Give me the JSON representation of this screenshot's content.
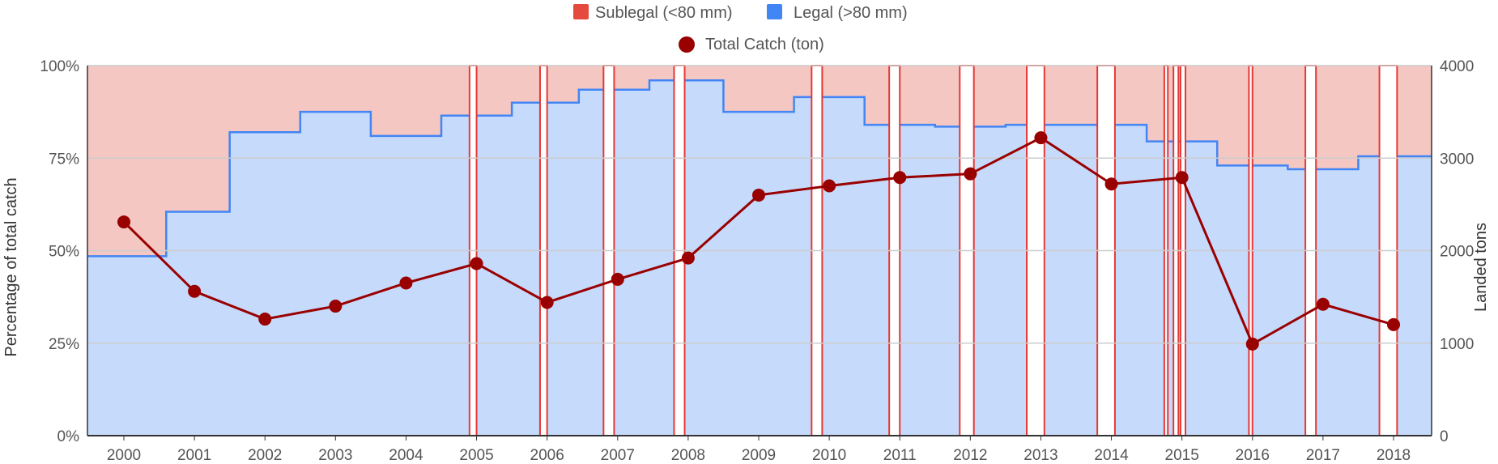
{
  "chart_data": {
    "type": "area",
    "legend": [
      {
        "name": "Sublegal (<80 mm)",
        "color": "#e54a3f",
        "marker": "square"
      },
      {
        "name": "Legal (>80 mm)",
        "color": "#4285f4",
        "marker": "square"
      },
      {
        "name": "Total Catch (ton)",
        "color": "#990000",
        "marker": "circle"
      }
    ],
    "legend_position": "top",
    "ylabel_left": "Percentage of total catch",
    "ylabel_right": "Landed tons",
    "y_left_ticks": [
      "0%",
      "25%",
      "50%",
      "75%",
      "100%"
    ],
    "y_right_ticks": [
      "0",
      "1000",
      "2000",
      "3000",
      "4000"
    ],
    "ylim_left": [
      0,
      100
    ],
    "ylim_right": [
      0,
      4000
    ],
    "x_ticks": [
      "2000",
      "2001",
      "2002",
      "2003",
      "2004",
      "2005",
      "2006",
      "2007",
      "2008",
      "2009",
      "2010",
      "2011",
      "2012",
      "2013",
      "2014",
      "2015",
      "2016",
      "2017",
      "2018"
    ],
    "grid": true,
    "colors": {
      "sublegal_fill": "#f4c7c3",
      "legal_fill": "#c6dafc",
      "legal_line": "#4285f4",
      "gap_outline": "#e53935",
      "catch_line": "#990000",
      "grid": "#cccccc",
      "axis": "#333333"
    },
    "legal_percentage_steps": [
      {
        "x_start": 2000,
        "x_end": 2000.6,
        "value": 48.5
      },
      {
        "x_start": 2000.6,
        "x_end": 2001.5,
        "value": 60.5
      },
      {
        "x_start": 2001.5,
        "x_end": 2002.5,
        "value": 82
      },
      {
        "x_start": 2002.5,
        "x_end": 2003.5,
        "value": 87.5
      },
      {
        "x_start": 2003.5,
        "x_end": 2004.5,
        "value": 81
      },
      {
        "x_start": 2004.5,
        "x_end": 2004.9,
        "value": 86.5
      },
      {
        "x_start": 2004.9,
        "x_end": 2005.5,
        "value": 86.5
      },
      {
        "x_start": 2005.5,
        "x_end": 2006.45,
        "value": 90
      },
      {
        "x_start": 2006.45,
        "x_end": 2007.45,
        "value": 93.5
      },
      {
        "x_start": 2007.45,
        "x_end": 2008.5,
        "value": 96
      },
      {
        "x_start": 2008.5,
        "x_end": 2009.5,
        "value": 87.5
      },
      {
        "x_start": 2009.5,
        "x_end": 2010.5,
        "value": 91.5
      },
      {
        "x_start": 2010.5,
        "x_end": 2010.85,
        "value": 84
      },
      {
        "x_start": 2010.85,
        "x_end": 2011.5,
        "value": 84
      },
      {
        "x_start": 2011.5,
        "x_end": 2012.5,
        "value": 83.5
      },
      {
        "x_start": 2012.5,
        "x_end": 2013.5,
        "value": 84
      },
      {
        "x_start": 2013.5,
        "x_end": 2014.5,
        "value": 84
      },
      {
        "x_start": 2014.5,
        "x_end": 2014.95,
        "value": 79.5
      },
      {
        "x_start": 2014.95,
        "x_end": 2015.5,
        "value": 79.5
      },
      {
        "x_start": 2015.5,
        "x_end": 2016.5,
        "value": 73
      },
      {
        "x_start": 2016.5,
        "x_end": 2017.5,
        "value": 72
      },
      {
        "x_start": 2017.5,
        "x_end": 2018.5,
        "value": 75.5
      }
    ],
    "gaps": [
      {
        "x_start": 2004.9,
        "x_end": 2005.0
      },
      {
        "x_start": 2005.9,
        "x_end": 2006.0
      },
      {
        "x_start": 2006.8,
        "x_end": 2006.95
      },
      {
        "x_start": 2007.8,
        "x_end": 2007.95
      },
      {
        "x_start": 2009.75,
        "x_end": 2009.9
      },
      {
        "x_start": 2010.85,
        "x_end": 2011.0
      },
      {
        "x_start": 2011.85,
        "x_end": 2012.05
      },
      {
        "x_start": 2012.8,
        "x_end": 2013.05
      },
      {
        "x_start": 2013.8,
        "x_end": 2014.05
      },
      {
        "x_start": 2014.75,
        "x_end": 2014.8
      },
      {
        "x_start": 2014.88,
        "x_end": 2014.95
      },
      {
        "x_start": 2014.98,
        "x_end": 2015.05
      },
      {
        "x_start": 2015.95,
        "x_end": 2016.0
      },
      {
        "x_start": 2016.75,
        "x_end": 2016.9
      },
      {
        "x_start": 2017.8,
        "x_end": 2018.05
      }
    ],
    "total_catch": {
      "name": "Total Catch (ton)",
      "x": [
        2000,
        2001,
        2002,
        2003,
        2004,
        2005,
        2006,
        2007,
        2008,
        2009,
        2010,
        2011,
        2012,
        2013,
        2014,
        2015,
        2016,
        2017,
        2018
      ],
      "values": [
        2310,
        1560,
        1260,
        1400,
        1650,
        1860,
        1440,
        1690,
        1920,
        2600,
        2700,
        2790,
        2830,
        3220,
        2720,
        2790,
        990,
        1420,
        1200
      ]
    }
  }
}
